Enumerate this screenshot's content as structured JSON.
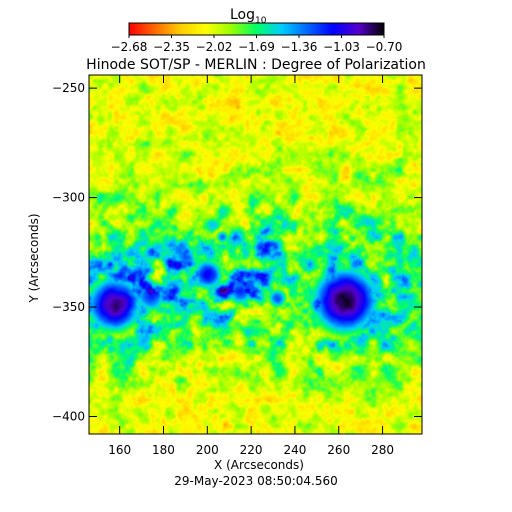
{
  "colorbar": {
    "title_base": "Log",
    "title_subscript": "10",
    "tick_labels": [
      "−2.68",
      "−2.35",
      "−2.02",
      "−1.69",
      "−1.36",
      "−1.03",
      "−0.70"
    ],
    "range": [
      -2.68,
      -0.7
    ],
    "colormap": [
      "#ff0000",
      "#ff6600",
      "#ffcc00",
      "#ffff00",
      "#99ff00",
      "#00ff66",
      "#00ccff",
      "#0066ff",
      "#0000ff",
      "#5500cc",
      "#000000"
    ]
  },
  "chart_data": {
    "type": "heatmap",
    "title": "Hinode SOT/SP - MERLIN : Degree of Polarization",
    "xlabel": "X (Arcseconds)",
    "ylabel": "Y (Arcseconds)",
    "xlim": [
      146,
      298
    ],
    "ylim": [
      -408,
      -244
    ],
    "xticks": [
      160,
      180,
      200,
      220,
      240,
      260,
      280
    ],
    "yticks": [
      -250,
      -300,
      -350,
      -400
    ],
    "value_scale": "log10",
    "color_range": [
      -2.68,
      -0.7
    ],
    "features": [
      {
        "name": "sunspot",
        "x": 263,
        "y": -347,
        "radius": 19,
        "peak": -0.75
      },
      {
        "name": "sunspot",
        "x": 157,
        "y": -349,
        "radius": 16,
        "peak": -0.95
      },
      {
        "name": "pore",
        "x": 174,
        "y": -345,
        "radius": 10,
        "peak": -1.2
      },
      {
        "name": "pore",
        "x": 200,
        "y": -335,
        "radius": 9,
        "peak": -1.15
      },
      {
        "name": "pore",
        "x": 215,
        "y": -343,
        "radius": 8,
        "peak": -1.2
      },
      {
        "name": "pore",
        "x": 232,
        "y": -346,
        "radius": 6,
        "peak": -1.25
      },
      {
        "name": "pore",
        "x": 227,
        "y": -322,
        "radius": 4,
        "peak": -1.1
      },
      {
        "name": "pore",
        "x": 207,
        "y": -318,
        "radius": 4,
        "peak": -1.3
      }
    ]
  },
  "footer": {
    "timestamp": "29-May-2023 08:50:04.560"
  }
}
